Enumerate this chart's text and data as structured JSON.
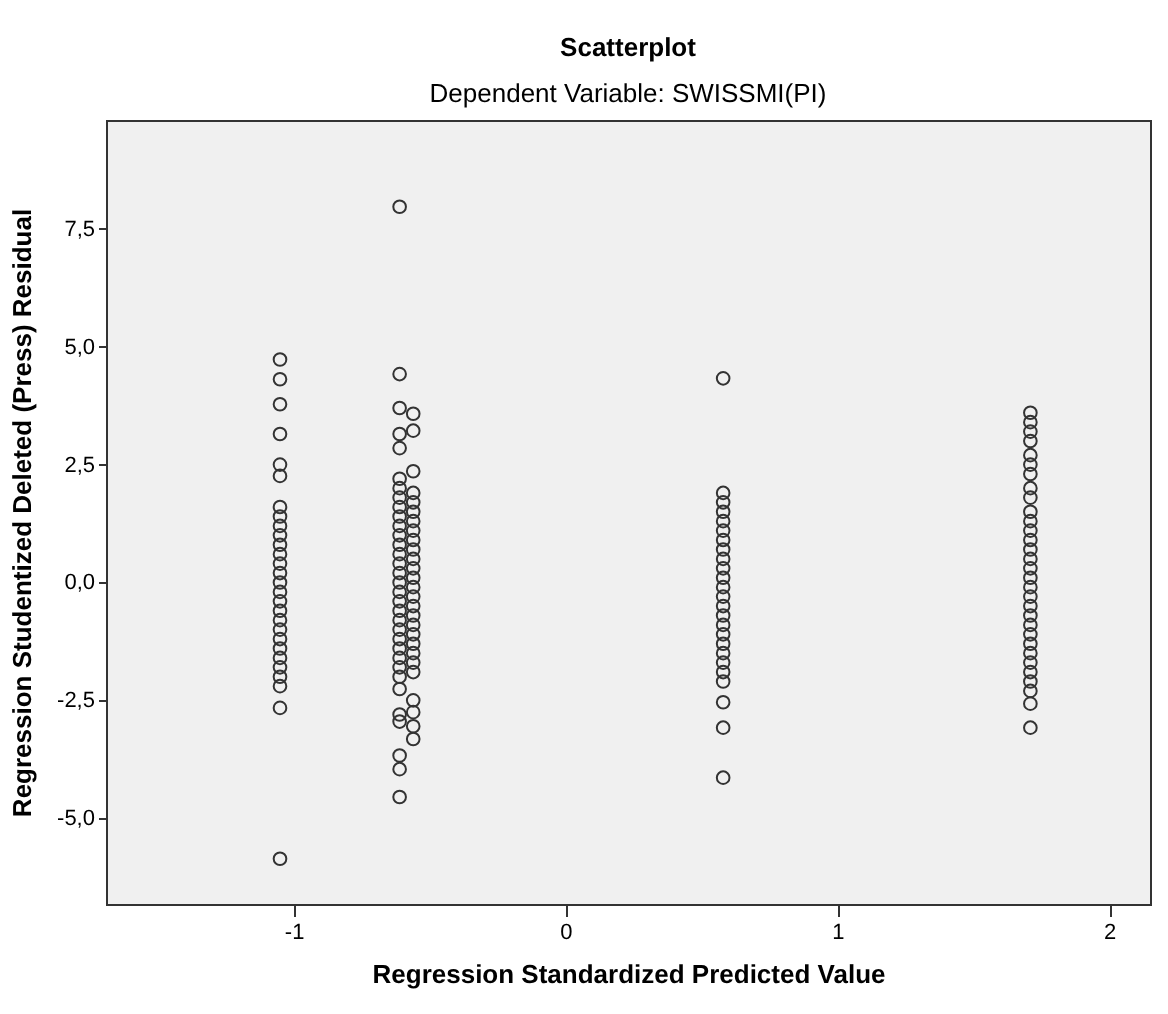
{
  "chart_data": {
    "type": "scatter",
    "title": "Scatterplot",
    "subtitle": "Dependent Variable: SWISSMI(PI)",
    "xlabel": "Regression Standardized Predicted Value",
    "ylabel": "Regression Studentized Deleted (Press) Residual",
    "xlim": [
      -1.69,
      2.15
    ],
    "ylim": [
      -6.82,
      9.81
    ],
    "xticks": [
      -1,
      0,
      1,
      2
    ],
    "yticks": [
      {
        "value": -5,
        "label": "-5,0"
      },
      {
        "value": -2.5,
        "label": "-2,5"
      },
      {
        "value": 0,
        "label": "0,0"
      },
      {
        "value": 2.5,
        "label": "2,5"
      },
      {
        "value": 5,
        "label": "5,0"
      },
      {
        "value": 7.5,
        "label": "7,5"
      }
    ],
    "grid": false,
    "marker": "circle",
    "series": [
      {
        "color": "#333333",
        "x": [
          -1.05,
          -1.05,
          -1.05,
          -1.05,
          -1.05,
          -1.05,
          -1.05,
          -1.05,
          -1.05,
          -1.05,
          -1.05,
          -1.05,
          -1.05,
          -1.05,
          -1.05,
          -1.05,
          -1.05,
          -1.05,
          -1.05,
          -1.05,
          -1.05,
          -1.05,
          -1.05,
          -1.05,
          -1.05,
          -1.05,
          -1.05,
          -1.05
        ],
        "values": [
          4.73,
          4.31,
          3.78,
          3.15,
          2.5,
          2.26,
          1.6,
          1.4,
          1.2,
          1.0,
          0.8,
          0.6,
          0.4,
          0.2,
          0.0,
          -0.2,
          -0.4,
          -0.6,
          -0.8,
          -1.0,
          -1.2,
          -1.4,
          -1.6,
          -1.8,
          -2.0,
          -2.2,
          -2.66,
          -5.86
        ]
      },
      {
        "color": "#333333",
        "x": [
          -0.61,
          -0.61,
          -0.61,
          -0.61,
          -0.61,
          -0.61,
          -0.61,
          -0.61,
          -0.61,
          -0.61,
          -0.61,
          -0.61,
          -0.61,
          -0.61,
          -0.61,
          -0.61,
          -0.61,
          -0.61,
          -0.61,
          -0.61,
          -0.61,
          -0.61,
          -0.61,
          -0.61,
          -0.61,
          -0.61,
          -0.61,
          -0.61,
          -0.61,
          -0.61,
          -0.61,
          -0.61,
          -0.61
        ],
        "values": [
          7.97,
          4.42,
          3.7,
          3.15,
          2.85,
          2.2,
          2.0,
          1.8,
          1.6,
          1.4,
          1.2,
          1.0,
          0.8,
          0.6,
          0.4,
          0.2,
          0.0,
          -0.2,
          -0.4,
          -0.6,
          -0.8,
          -1.0,
          -1.2,
          -1.4,
          -1.6,
          -1.8,
          -2.0,
          -2.26,
          -2.8,
          -2.95,
          -3.67,
          -3.96,
          -4.55
        ]
      },
      {
        "color": "#333333",
        "x": [
          -0.56,
          -0.56,
          -0.56,
          -0.56,
          -0.56,
          -0.56,
          -0.56,
          -0.56,
          -0.56,
          -0.56,
          -0.56,
          -0.56,
          -0.56,
          -0.56,
          -0.56,
          -0.56,
          -0.56,
          -0.56,
          -0.56,
          -0.56,
          -0.56,
          -0.56,
          -0.56,
          -0.56,
          -0.56,
          -0.56,
          -0.56
        ],
        "values": [
          3.58,
          3.22,
          2.36,
          1.9,
          1.7,
          1.5,
          1.3,
          1.1,
          0.9,
          0.7,
          0.5,
          0.3,
          0.1,
          -0.1,
          -0.3,
          -0.5,
          -0.7,
          -0.9,
          -1.1,
          -1.3,
          -1.5,
          -1.7,
          -1.9,
          -2.5,
          -2.75,
          -3.05,
          -3.32
        ]
      },
      {
        "color": "#333333",
        "x": [
          0.58,
          0.58,
          0.58,
          0.58,
          0.58,
          0.58,
          0.58,
          0.58,
          0.58,
          0.58,
          0.58,
          0.58,
          0.58,
          0.58,
          0.58,
          0.58,
          0.58,
          0.58,
          0.58,
          0.58,
          0.58,
          0.58,
          0.58,
          0.58,
          0.58
        ],
        "values": [
          4.33,
          1.9,
          1.7,
          1.5,
          1.3,
          1.1,
          0.9,
          0.7,
          0.5,
          0.3,
          0.1,
          -0.1,
          -0.3,
          -0.5,
          -0.7,
          -0.9,
          -1.1,
          -1.3,
          -1.5,
          -1.7,
          -1.9,
          -2.1,
          -2.54,
          -3.08,
          -4.14
        ]
      },
      {
        "color": "#333333",
        "x": [
          1.71,
          1.71,
          1.71,
          1.71,
          1.71,
          1.71,
          1.71,
          1.71,
          1.71,
          1.71,
          1.71,
          1.71,
          1.71,
          1.71,
          1.71,
          1.71,
          1.71,
          1.71,
          1.71,
          1.71,
          1.71,
          1.71,
          1.71,
          1.71,
          1.71,
          1.71,
          1.71,
          1.71,
          1.71,
          1.71,
          1.71
        ],
        "values": [
          3.6,
          3.4,
          3.2,
          3.0,
          2.7,
          2.5,
          2.3,
          2.0,
          1.8,
          1.5,
          1.3,
          1.1,
          0.9,
          0.7,
          0.5,
          0.3,
          0.1,
          -0.1,
          -0.3,
          -0.5,
          -0.7,
          -0.9,
          -1.1,
          -1.3,
          -1.5,
          -1.7,
          -1.9,
          -2.1,
          -2.3,
          -2.57,
          -3.08
        ]
      }
    ]
  }
}
